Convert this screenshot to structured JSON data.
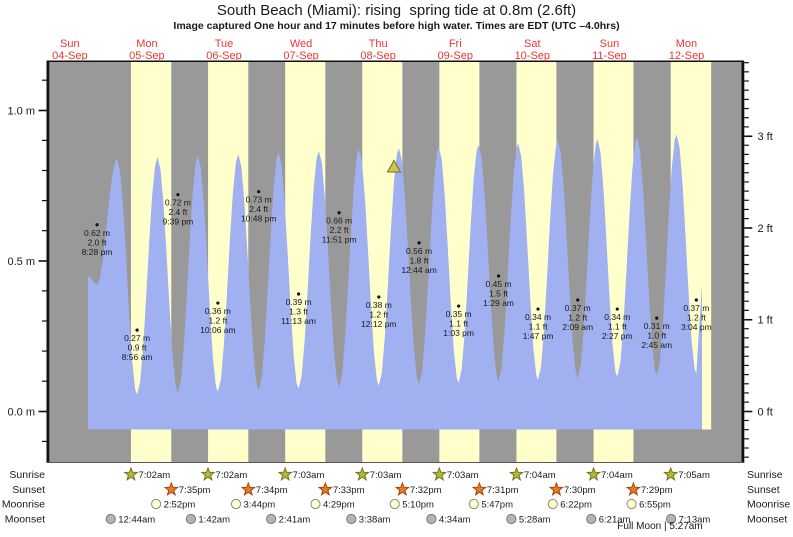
{
  "header": {
    "title": "South Beach (Miami): rising  spring tide at 0.8m (2.6ft)",
    "subtitle": "Image captured One hour and 17 minutes before high water. Times are EDT (UTC –4.0hrs)"
  },
  "days": [
    {
      "name": "Sun",
      "date": "04-Sep"
    },
    {
      "name": "Mon",
      "date": "05-Sep"
    },
    {
      "name": "Tue",
      "date": "06-Sep"
    },
    {
      "name": "Wed",
      "date": "07-Sep"
    },
    {
      "name": "Thu",
      "date": "08-Sep"
    },
    {
      "name": "Fri",
      "date": "09-Sep"
    },
    {
      "name": "Sat",
      "date": "10-Sep"
    },
    {
      "name": "Sun",
      "date": "11-Sep"
    },
    {
      "name": "Mon",
      "date": "12-Sep"
    }
  ],
  "chart_data": {
    "type": "area",
    "title": "South Beach (Miami) tide height",
    "ylabel_left": "m",
    "ylabel_right": "ft",
    "y_ticks_m": [
      {
        "value": 1.0,
        "label": "1.0 m"
      },
      {
        "value": 0.5,
        "label": "0.5 m"
      },
      {
        "value": 0.0,
        "label": "0.0 m"
      }
    ],
    "y_ticks_ft": [
      {
        "value": 3,
        "label": "3 ft"
      },
      {
        "value": 2,
        "label": "2 ft"
      },
      {
        "value": 1,
        "label": "1 ft"
      },
      {
        "value": 0,
        "label": "0 ft"
      }
    ],
    "ylim_m": [
      -0.17,
      1.16
    ],
    "tide_events": [
      {
        "day_index": 0,
        "day": "Sun 04-Sep",
        "time": "8:28 pm",
        "height_m": 0.62,
        "height_ft": 2.0,
        "type": "high"
      },
      {
        "day_index": 1,
        "day": "Mon 05-Sep",
        "time": "8:56 am",
        "height_m": 0.27,
        "height_ft": 0.9,
        "type": "low"
      },
      {
        "day_index": 1,
        "day": "Mon 05-Sep",
        "time": "9:39 pm",
        "height_m": 0.72,
        "height_ft": 2.4,
        "type": "high"
      },
      {
        "day_index": 2,
        "day": "Tue 06-Sep",
        "time": "10:06 am",
        "height_m": 0.36,
        "height_ft": 1.2,
        "type": "low"
      },
      {
        "day_index": 2,
        "day": "Tue 06-Sep",
        "time": "10:48 pm",
        "height_m": 0.73,
        "height_ft": 2.4,
        "type": "high"
      },
      {
        "day_index": 3,
        "day": "Wed 07-Sep",
        "time": "11:13 am",
        "height_m": 0.39,
        "height_ft": 1.3,
        "type": "low"
      },
      {
        "day_index": 3,
        "day": "Wed 07-Sep",
        "time": "11:51 pm",
        "height_m": 0.66,
        "height_ft": 2.2,
        "type": "high"
      },
      {
        "day_index": 4,
        "day": "Thu 08-Sep",
        "time": "12:12 pm",
        "height_m": 0.38,
        "height_ft": 1.2,
        "type": "low"
      },
      {
        "day_index": 5,
        "day": "Fri 09-Sep",
        "time": "12:44 am",
        "height_m": 0.56,
        "height_ft": 1.8,
        "type": "high"
      },
      {
        "day_index": 5,
        "day": "Fri 09-Sep",
        "time": "1:03 pm",
        "height_m": 0.35,
        "height_ft": 1.1,
        "type": "low"
      },
      {
        "day_index": 6,
        "day": "Sat 10-Sep",
        "time": "1:29 am",
        "height_m": 0.45,
        "height_ft": 1.5,
        "type": "high"
      },
      {
        "day_index": 6,
        "day": "Sat 10-Sep",
        "time": "1:47 pm",
        "height_m": 0.34,
        "height_ft": 1.1,
        "type": "low"
      },
      {
        "day_index": 7,
        "day": "Sun 11-Sep",
        "time": "2:09 am",
        "height_m": 0.37,
        "height_ft": 1.2,
        "type": "high"
      },
      {
        "day_index": 7,
        "day": "Sun 11-Sep",
        "time": "2:27 pm",
        "height_m": 0.34,
        "height_ft": 1.1,
        "type": "low"
      },
      {
        "day_index": 8,
        "day": "Mon 12-Sep",
        "time": "2:45 am",
        "height_m": 0.31,
        "height_ft": 1.0,
        "type": "high"
      },
      {
        "day_index": 8,
        "day": "Mon 12-Sep",
        "time": "3:04 pm",
        "height_m": 0.37,
        "height_ft": 1.2,
        "type": "low"
      }
    ],
    "current_marker": {
      "symbol": "triangle",
      "tide_state": "rising",
      "height_m": 0.8,
      "height_ft": 2.6
    }
  },
  "astro": {
    "sunrise": {
      "label": "Sunrise",
      "events": [
        {
          "day_index": 1,
          "time": "7:02am"
        },
        {
          "day_index": 2,
          "time": "7:02am"
        },
        {
          "day_index": 3,
          "time": "7:03am"
        },
        {
          "day_index": 4,
          "time": "7:03am"
        },
        {
          "day_index": 5,
          "time": "7:03am"
        },
        {
          "day_index": 6,
          "time": "7:04am"
        },
        {
          "day_index": 7,
          "time": "7:04am"
        },
        {
          "day_index": 8,
          "time": "7:05am"
        }
      ]
    },
    "sunset": {
      "label": "Sunset",
      "events": [
        {
          "day_index": 1,
          "time": "7:35pm"
        },
        {
          "day_index": 2,
          "time": "7:34pm"
        },
        {
          "day_index": 3,
          "time": "7:33pm"
        },
        {
          "day_index": 4,
          "time": "7:32pm"
        },
        {
          "day_index": 5,
          "time": "7:31pm"
        },
        {
          "day_index": 6,
          "time": "7:30pm"
        },
        {
          "day_index": 7,
          "time": "7:29pm"
        }
      ]
    },
    "moonrise": {
      "label": "Moonrise",
      "events": [
        {
          "day_index": 1,
          "time": "2:52pm"
        },
        {
          "day_index": 2,
          "time": "3:44pm"
        },
        {
          "day_index": 3,
          "time": "4:29pm"
        },
        {
          "day_index": 4,
          "time": "5:10pm"
        },
        {
          "day_index": 5,
          "time": "5:47pm"
        },
        {
          "day_index": 6,
          "time": "6:22pm"
        },
        {
          "day_index": 7,
          "time": "6:55pm"
        }
      ]
    },
    "moonset": {
      "label": "Moonset",
      "events": [
        {
          "day_index": 1,
          "time": "12:44am"
        },
        {
          "day_index": 2,
          "time": "1:42am"
        },
        {
          "day_index": 3,
          "time": "2:41am"
        },
        {
          "day_index": 4,
          "time": "3:38am"
        },
        {
          "day_index": 5,
          "time": "4:34am"
        },
        {
          "day_index": 6,
          "time": "5:28am"
        },
        {
          "day_index": 7,
          "time": "6:21am"
        },
        {
          "day_index": 8,
          "time": "7:13am"
        }
      ]
    }
  },
  "footer": {
    "moon_phase": "Full Moon | 5:27am"
  },
  "colors": {
    "day_band": "#ffffcc",
    "night_band": "#999999",
    "water": "#a0b0f0",
    "label_red": "#ee3333",
    "marker_fill": "#d3c54a",
    "marker_stroke": "#6e6e2e",
    "sunrise_fill": "#b5b832",
    "sunrise_stroke": "#73751f",
    "sunset_fill": "#e87d1e",
    "sunset_stroke": "#a8430e",
    "moonrise_fill": "#ffffcc",
    "moonrise_stroke": "#8a8a8a",
    "moonset_fill": "#b4b4b4",
    "moonset_stroke": "#777777",
    "axis": "#111111"
  }
}
